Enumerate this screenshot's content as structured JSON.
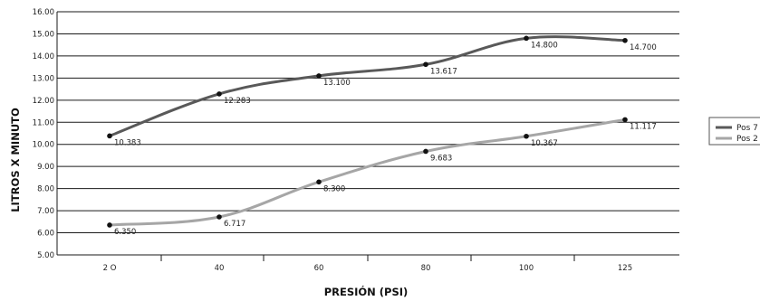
{
  "chart_data": {
    "type": "line",
    "categories": [
      "2 O",
      "40",
      "60",
      "80",
      "100",
      "125"
    ],
    "ylabel": "LITROS X MINUTO",
    "xlabel": "PRESIÓN (PSI)",
    "ylim": [
      5.0,
      16.0
    ],
    "yticks": [
      "5.00",
      "6.00",
      "7.00",
      "8.00",
      "9.00",
      "10.00",
      "11.00",
      "12.00",
      "13.00",
      "14.00",
      "15.00",
      "16.00"
    ],
    "grid": true,
    "legend_position": "right",
    "series": [
      {
        "name": "Pos 7",
        "color": "#595959",
        "values": [
          10.383,
          12.283,
          13.1,
          13.617,
          14.8,
          14.7
        ],
        "labels": [
          "10.383",
          "12.283",
          "13.100",
          "13.617",
          "14.800",
          "14.700"
        ]
      },
      {
        "name": "Pos 2",
        "color": "#a6a6a6",
        "values": [
          6.35,
          6.717,
          8.3,
          9.683,
          10.367,
          11.117
        ],
        "labels": [
          "6.350",
          "6.717",
          "8.300",
          "9.683",
          "10.367",
          "11.117"
        ]
      }
    ]
  }
}
